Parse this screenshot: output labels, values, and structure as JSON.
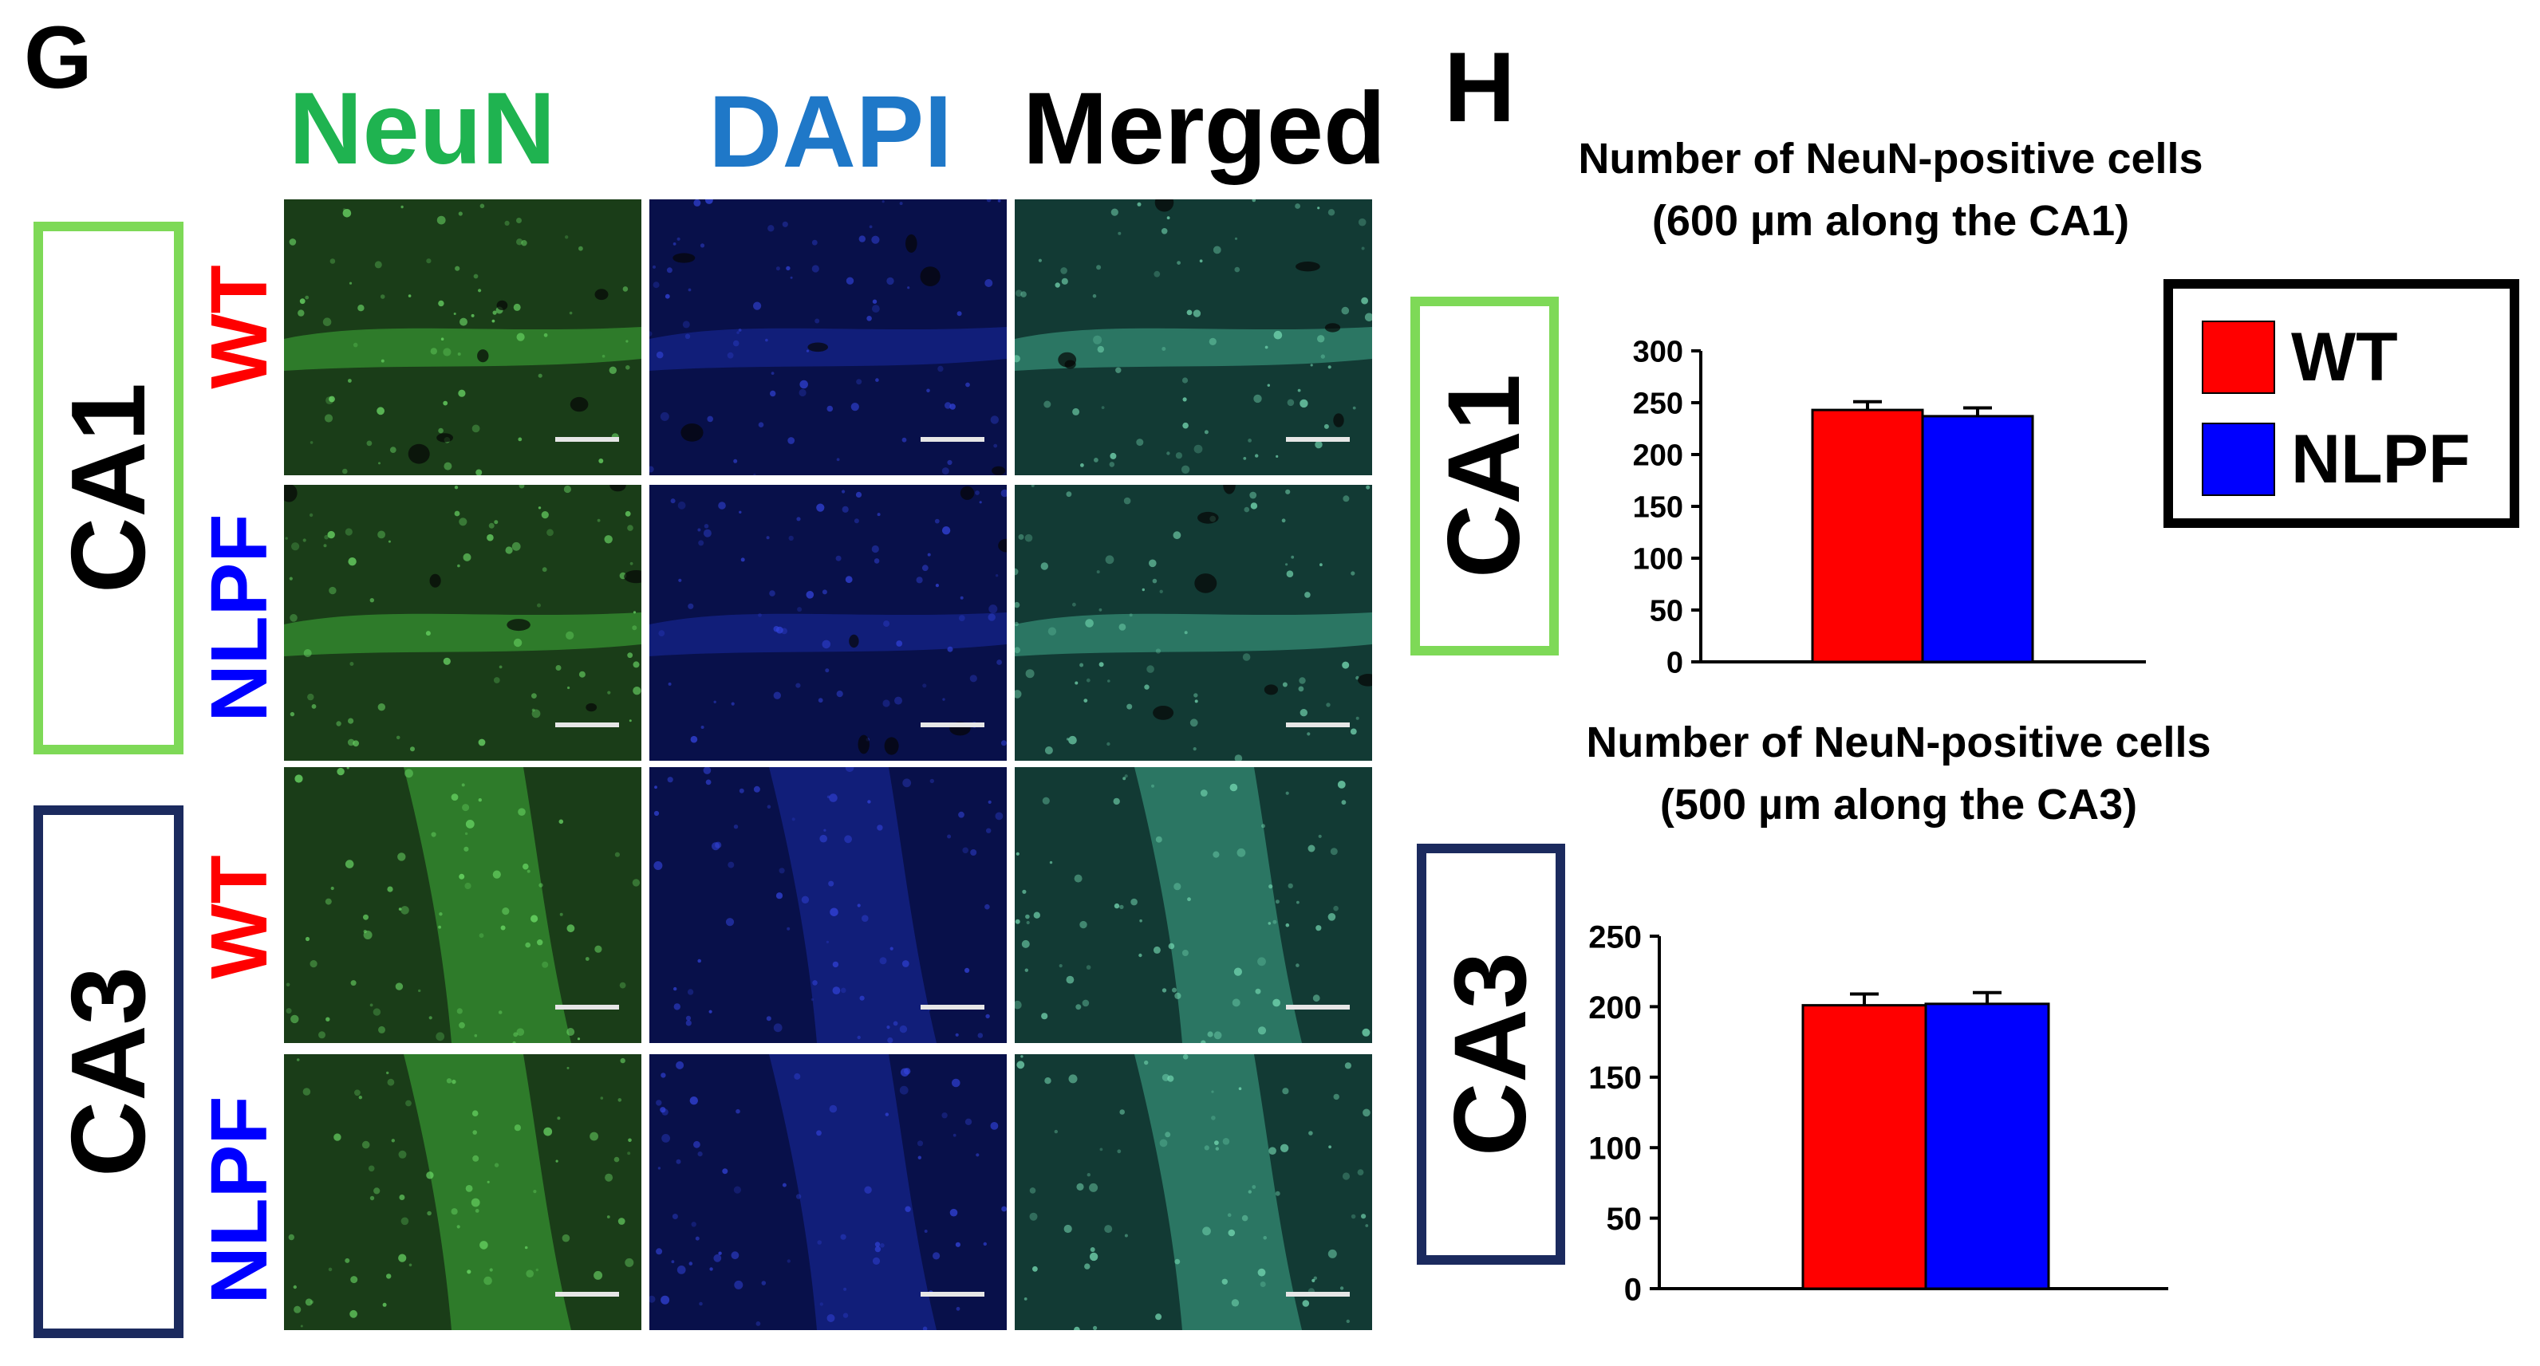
{
  "panels": {
    "g": {
      "letter": "G"
    },
    "h": {
      "letter": "H"
    }
  },
  "micrographs": {
    "columns": [
      "NeuN",
      "DAPI",
      "Merged"
    ],
    "column_colors": [
      "#1fb350",
      "#1f78c8",
      "#000000"
    ],
    "regions": [
      {
        "label": "CA1",
        "box_color": "#7ed957",
        "genotypes": [
          "WT",
          "NLPF"
        ]
      },
      {
        "label": "CA3",
        "box_color": "#1b2a5e",
        "genotypes": [
          "WT",
          "NLPF"
        ]
      }
    ],
    "genotype_colors": {
      "WT": "#ff0000",
      "NLPF": "#0000ff"
    }
  },
  "legend": {
    "items": [
      {
        "label": "WT",
        "color": "#ff0000"
      },
      {
        "label": "NLPF",
        "color": "#0000ff"
      }
    ]
  },
  "chart_data": [
    {
      "type": "bar",
      "title": "Number of NeuN-positive cells\n(600 µm along the CA1)",
      "region_label": "CA1",
      "region_box_color": "#7ed957",
      "categories": [
        "WT",
        "NLPF"
      ],
      "values": [
        243,
        237
      ],
      "errors": [
        8,
        8
      ],
      "colors": [
        "#ff0000",
        "#0000ff"
      ],
      "ylim": [
        0,
        300
      ],
      "yticks": [
        0,
        50,
        100,
        150,
        200,
        250,
        300
      ],
      "xlabel": "",
      "ylabel": "",
      "grid": false
    },
    {
      "type": "bar",
      "title": "Number of NeuN-positive cells\n(500 µm along the CA3)",
      "region_label": "CA3",
      "region_box_color": "#1b2a5e",
      "categories": [
        "WT",
        "NLPF"
      ],
      "values": [
        201,
        202
      ],
      "errors": [
        8,
        8
      ],
      "colors": [
        "#ff0000",
        "#0000ff"
      ],
      "ylim": [
        0,
        250
      ],
      "yticks": [
        0,
        50,
        100,
        150,
        200,
        250
      ],
      "xlabel": "",
      "ylabel": "",
      "grid": false
    }
  ]
}
